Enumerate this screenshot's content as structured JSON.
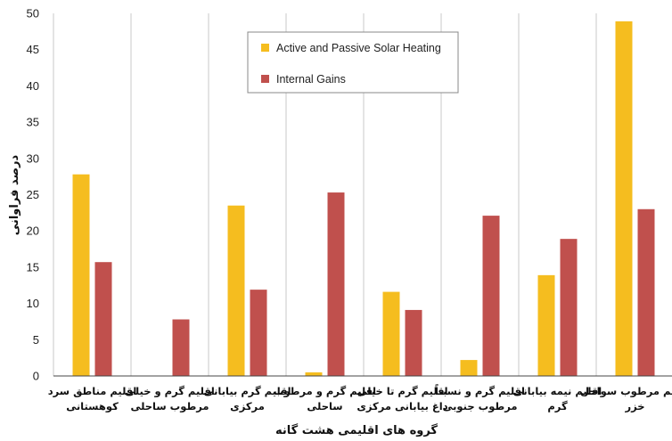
{
  "chart_data": {
    "type": "bar",
    "categories": [
      [
        "اقلیم مناطق سرد",
        "کوهستانی"
      ],
      [
        "اقلیم گرم و خیلی",
        "مرطوب ساحلی"
      ],
      [
        "اقلیم گرم بیابانی",
        "مرکزی"
      ],
      [
        "اقلیم گرم و مرطوب",
        "ساحلی"
      ],
      [
        "اقلیم گرم تا خیلی",
        "داغ بیابانی مرکزی"
      ],
      [
        "اقلیم گرم و نسبتاً",
        "مرطوب جنوبی"
      ],
      [
        "اقلیم نیمه بیابانی",
        "گرم"
      ],
      [
        "اقلیم مرطوب سواحل",
        "خزر"
      ]
    ],
    "series": [
      {
        "name": "Active and Passive Solar Heating",
        "color": "#f5bd1f",
        "values": [
          27.8,
          0,
          23.5,
          0.5,
          11.6,
          2.2,
          13.9,
          48.9
        ]
      },
      {
        "name": "Internal Gains",
        "color": "#c0504d",
        "values": [
          15.7,
          7.8,
          11.9,
          25.3,
          9.1,
          22.1,
          18.9,
          23.0
        ]
      }
    ],
    "xlabel": "گروه های اقلیمی هشت گانه",
    "ylabel": "درصد فراوانی",
    "ylim": [
      0,
      50
    ],
    "yticks": [
      0,
      5,
      10,
      15,
      20,
      25,
      30,
      35,
      40,
      45,
      50
    ],
    "grid": "vertical-category-separators",
    "legend_position": "top-center"
  }
}
